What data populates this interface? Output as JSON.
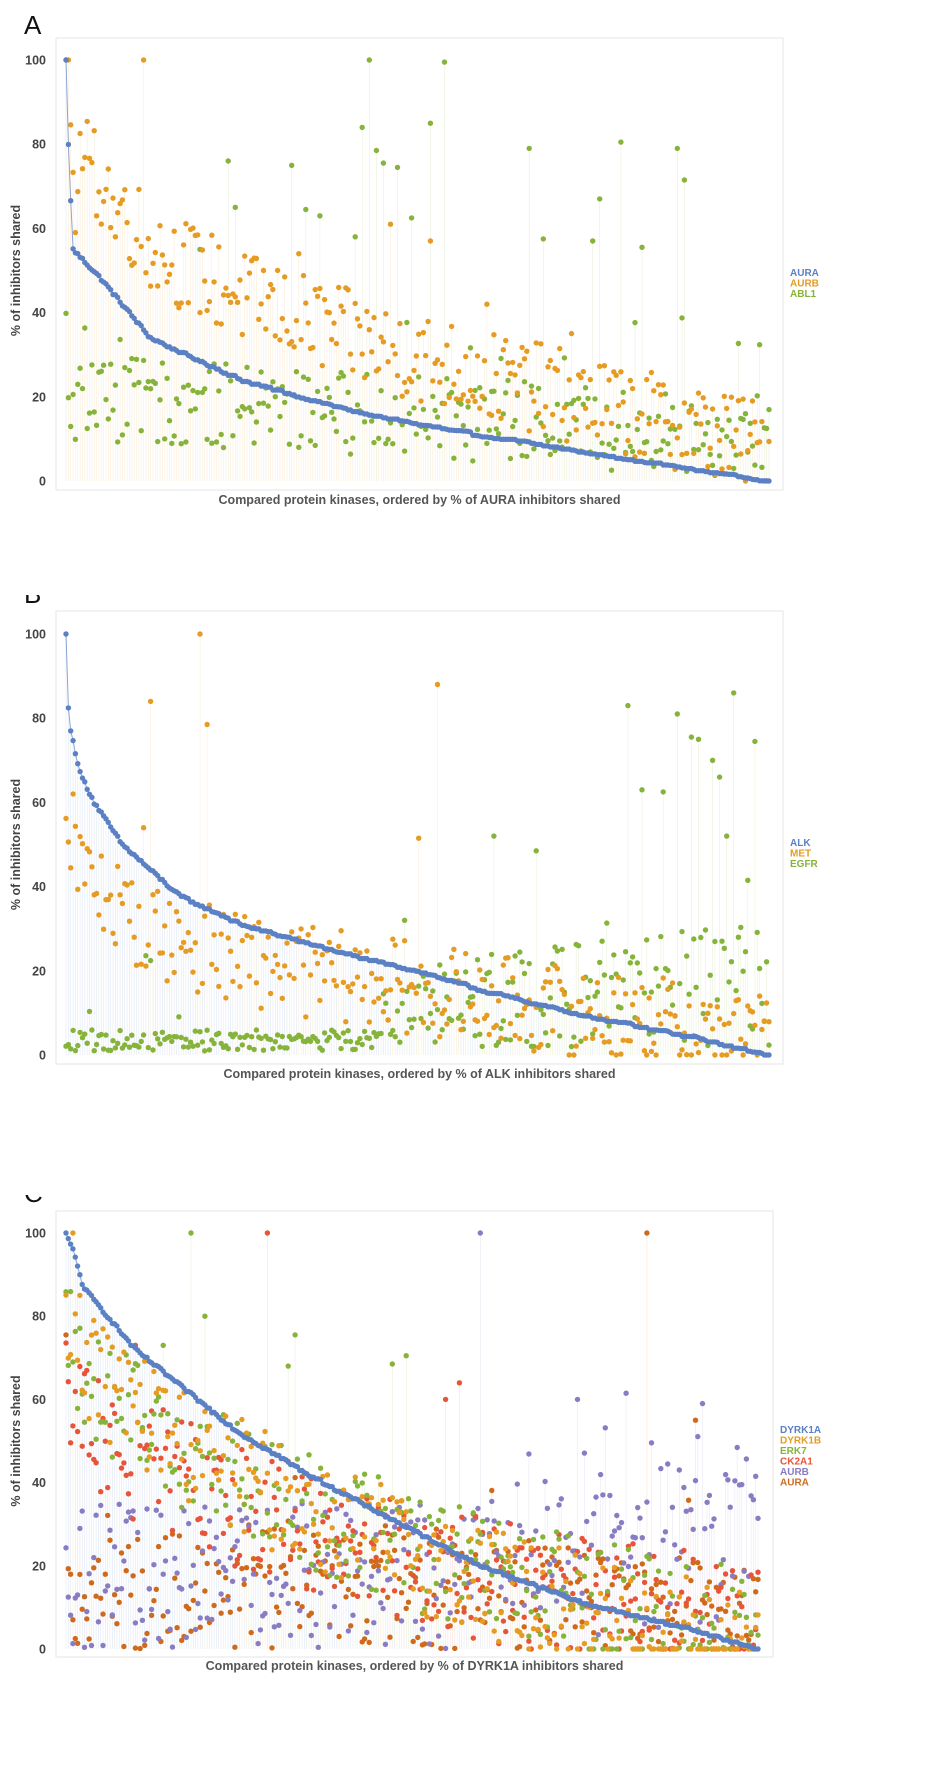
{
  "colors": {
    "blue": "#5b80c4",
    "orange": "#e69b22",
    "green": "#86b33a",
    "red": "#e8543a",
    "purple": "#8a7cc2",
    "brown": "#cf6a1c"
  },
  "chart_data": [
    {
      "type": "scatter",
      "panel_label": "A",
      "title": "",
      "xlabel": "Compared protein kinases, ordered by % of AURA inhibitors shared",
      "ylabel": "% of inhibitors shared",
      "ylim": [
        0,
        100
      ],
      "yticks": [
        0,
        20,
        40,
        60,
        80,
        100
      ],
      "n_kinases": 300,
      "grid": false,
      "legend_position": "right",
      "sorted_series": "AURA",
      "series": [
        {
          "name": "AURA",
          "color": "#5b80c4",
          "profile": [
            [
              0,
              100
            ],
            [
              0.004,
              76
            ],
            [
              0.01,
              55
            ],
            [
              0.05,
              48
            ],
            [
              0.12,
              34
            ],
            [
              0.25,
              24
            ],
            [
              0.4,
              17
            ],
            [
              0.55,
              12
            ],
            [
              0.7,
              8
            ],
            [
              0.85,
              4
            ],
            [
              0.97,
              1
            ],
            [
              1,
              0
            ]
          ]
        },
        {
          "name": "AURB",
          "color": "#e69b22",
          "highlights": [
            [
              0.11,
              100
            ],
            [
              0.015,
              59
            ],
            [
              0.07,
              58
            ],
            [
              0.52,
              57
            ],
            [
              0.46,
              61
            ],
            [
              0.33,
              54
            ],
            [
              0.28,
              50
            ],
            [
              0.6,
              42
            ],
            [
              0.72,
              35
            ]
          ]
        },
        {
          "name": "ABL1",
          "color": "#86b33a",
          "highlights": [
            [
              0.43,
              100
            ],
            [
              0.54,
              99.5
            ],
            [
              0.68,
              88
            ],
            [
              0.49,
              87
            ],
            [
              0.52,
              85
            ],
            [
              0.42,
              84
            ],
            [
              0.79,
              80.5
            ],
            [
              0.66,
              79
            ],
            [
              0.87,
              79
            ],
            [
              0.44,
              78.5
            ],
            [
              0.23,
              76
            ],
            [
              0.45,
              75.5
            ],
            [
              0.32,
              75
            ],
            [
              0.47,
              74.5
            ],
            [
              0.88,
              71.5
            ],
            [
              0.76,
              67
            ],
            [
              0.75,
              65.5
            ],
            [
              0.24,
              65
            ],
            [
              0.34,
              64.5
            ],
            [
              0.36,
              63
            ],
            [
              0.49,
              62.5
            ],
            [
              0.68,
              57.5
            ],
            [
              0.75,
              57
            ],
            [
              0.41,
              58
            ],
            [
              0.19,
              55
            ],
            [
              0.82,
              55.5
            ]
          ]
        }
      ]
    },
    {
      "type": "scatter",
      "panel_label": "B",
      "title": "",
      "xlabel": "Compared protein kinases, ordered by % of ALK inhibitors shared",
      "ylabel": "% of inhibitors shared",
      "ylim": [
        0,
        100
      ],
      "yticks": [
        0,
        20,
        40,
        60,
        80,
        100
      ],
      "n_kinases": 300,
      "grid": false,
      "legend_position": "right",
      "sorted_series": "ALK",
      "series": [
        {
          "name": "ALK",
          "color": "#5b80c4",
          "profile": [
            [
              0,
              100
            ],
            [
              0.004,
              79
            ],
            [
              0.02,
              67
            ],
            [
              0.04,
              60
            ],
            [
              0.08,
              50
            ],
            [
              0.16,
              38
            ],
            [
              0.25,
              31
            ],
            [
              0.4,
              24
            ],
            [
              0.5,
              20
            ],
            [
              0.6,
              15
            ],
            [
              0.75,
              9
            ],
            [
              0.9,
              4
            ],
            [
              1,
              0
            ]
          ]
        },
        {
          "name": "MET",
          "color": "#e69b22",
          "highlights": [
            [
              0.19,
              100
            ],
            [
              0.53,
              88
            ],
            [
              0.12,
              84
            ],
            [
              0.2,
              78.5
            ],
            [
              0.01,
              62
            ],
            [
              0.5,
              51.5
            ],
            [
              0.11,
              54
            ]
          ]
        },
        {
          "name": "EGFR",
          "color": "#86b33a",
          "highlights": [
            [
              0.94,
              100
            ],
            [
              0.95,
              86
            ],
            [
              0.98,
              86
            ],
            [
              0.8,
              83
            ],
            [
              0.87,
              81
            ],
            [
              0.93,
              76
            ],
            [
              0.89,
              75.5
            ],
            [
              0.9,
              75
            ],
            [
              0.92,
              70
            ],
            [
              0.98,
              74.5
            ],
            [
              0.93,
              66
            ],
            [
              0.82,
              63
            ],
            [
              0.85,
              62.5
            ],
            [
              0.97,
              41.5
            ],
            [
              0.94,
              52
            ],
            [
              0.61,
              52
            ],
            [
              0.67,
              48.5
            ]
          ]
        }
      ]
    },
    {
      "type": "scatter",
      "panel_label": "C",
      "title": "",
      "xlabel": "Compared protein kinases, ordered by % of DYRK1A inhibitors shared",
      "ylabel": "% of inhibitors shared",
      "ylim": [
        0,
        100
      ],
      "yticks": [
        0,
        20,
        40,
        60,
        80,
        100
      ],
      "n_kinases": 300,
      "grid": false,
      "legend_position": "right",
      "sorted_series": "DYRK1A",
      "series": [
        {
          "name": "DYRK1A",
          "color": "#5b80c4",
          "profile": [
            [
              0,
              100
            ],
            [
              0.01,
              96
            ],
            [
              0.025,
              87
            ],
            [
              0.06,
              80
            ],
            [
              0.1,
              72
            ],
            [
              0.16,
              64
            ],
            [
              0.25,
              52
            ],
            [
              0.35,
              42
            ],
            [
              0.45,
              33
            ],
            [
              0.6,
              20
            ],
            [
              0.75,
              11
            ],
            [
              0.9,
              5
            ],
            [
              1,
              0
            ]
          ]
        },
        {
          "name": "DYRK1B",
          "color": "#e69b22",
          "highlights": [
            [
              0.01,
              100
            ],
            [
              0.02,
              85
            ],
            [
              0.04,
              79
            ],
            [
              0.06,
              75
            ]
          ]
        },
        {
          "name": "ERK7",
          "color": "#86b33a",
          "highlights": [
            [
              0.18,
              100
            ],
            [
              0.2,
              80
            ],
            [
              0.33,
              75.5
            ],
            [
              0.32,
              68
            ],
            [
              0.49,
              70.5
            ],
            [
              0.47,
              68.5
            ],
            [
              0.14,
              73
            ],
            [
              0.01,
              69
            ]
          ]
        },
        {
          "name": "CK2A1",
          "color": "#e8543a",
          "highlights": [
            [
              0.29,
              100
            ],
            [
              0.57,
              64
            ],
            [
              0.1,
              73
            ],
            [
              0.55,
              60
            ]
          ]
        },
        {
          "name": "AURB",
          "color": "#8a7cc2",
          "highlights": [
            [
              0.6,
              100
            ],
            [
              0.81,
              61.5
            ],
            [
              0.74,
              60
            ],
            [
              0.92,
              59
            ]
          ]
        },
        {
          "name": "AURA",
          "color": "#cf6a1c",
          "highlights": [
            [
              0.84,
              100
            ],
            [
              0.0,
              75.5
            ],
            [
              0.91,
              55
            ]
          ]
        }
      ]
    }
  ]
}
